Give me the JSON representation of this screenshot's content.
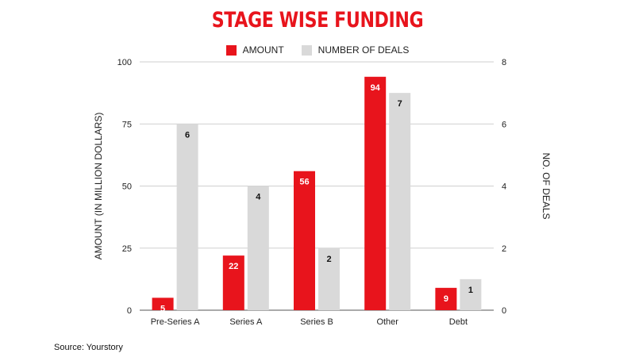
{
  "chart_data": {
    "type": "bar",
    "title": "STAGE WISE FUNDING",
    "categories": [
      "Pre-Series A",
      "Series A",
      "Series B",
      "Other",
      "Debt"
    ],
    "series": [
      {
        "name": "AMOUNT",
        "axis": "left",
        "color": "#e8141c",
        "label_color": "#ffffff",
        "values": [
          5,
          22,
          56,
          94,
          9
        ]
      },
      {
        "name": "NUMBER OF DEALS",
        "axis": "right",
        "color": "#d9d9d9",
        "label_color": "#111111",
        "values": [
          6,
          4,
          2,
          7,
          1
        ]
      }
    ],
    "ylabel": "AMOUNT (IN MILLION DOLLARS)",
    "y2label": "NO. OF DEALS",
    "ylim": [
      0,
      100
    ],
    "y2lim": [
      0,
      8
    ],
    "yticks": [
      "0",
      "25",
      "50",
      "75",
      "100"
    ],
    "y2ticks": [
      "0",
      "2",
      "4",
      "6",
      "8"
    ],
    "grid": true,
    "legend_position": "top-center"
  },
  "footer": {
    "source": "Source: Yourstory"
  }
}
